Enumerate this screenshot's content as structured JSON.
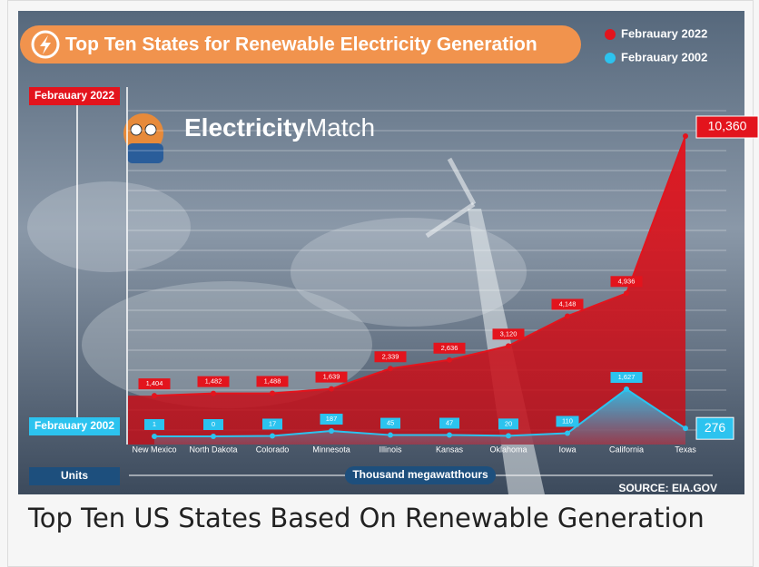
{
  "chart_data": {
    "type": "line",
    "title": "Top Ten States for Renewable Electricity Generation",
    "categories": [
      "New Mexico",
      "North Dakota",
      "Colorado",
      "Minnesota",
      "Illinois",
      "Kansas",
      "Oklahoma",
      "Iowa",
      "California",
      "Texas"
    ],
    "series": [
      {
        "name": "Febrauary 2022",
        "color": "#e3141d",
        "values": [
          1404,
          1482,
          1488,
          1639,
          2339,
          2636,
          3120,
          4148,
          4936,
          10360
        ],
        "value_labels": [
          "1,404",
          "1,482",
          "1,488",
          "1,639",
          "2,339",
          "2,636",
          "3,120",
          "4,148",
          "4,936",
          "10,360"
        ]
      },
      {
        "name": "Febrauary 2002",
        "color": "#2cc3ef",
        "values": [
          1,
          0,
          17,
          187,
          45,
          47,
          20,
          110,
          1627,
          276
        ],
        "value_labels": [
          "1",
          "0",
          "17",
          "187",
          "45",
          "47",
          "20",
          "110",
          "1,627",
          "276"
        ]
      }
    ],
    "units_label": "Units",
    "units": "Thousand megawatthours",
    "source": "SOURCE: EIA.GOV"
  },
  "brand": {
    "bold": "Electricity",
    "light": "Match"
  },
  "caption": "Top Ten US States Based On Renewable Generation"
}
